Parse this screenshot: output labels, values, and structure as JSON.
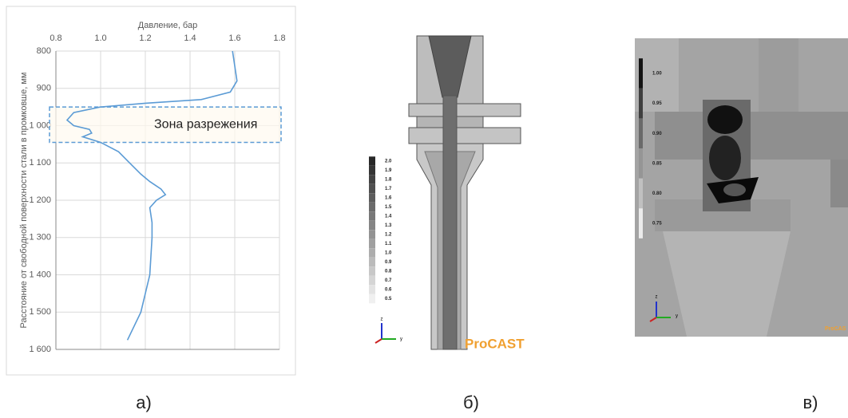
{
  "chart_data": {
    "type": "line",
    "x_label": "Давление, бар",
    "y_label": "Расстояние от свободной поверхности стали в промковше, мм",
    "annotation": "Зона разрежения",
    "band_ylim": [
      950,
      1045
    ],
    "xlim": [
      0.8,
      1.8
    ],
    "xticks": [
      0.8,
      {
        "value": 1,
        "label": "1.0"
      },
      1.2,
      1.4,
      1.6,
      1.8
    ],
    "ylim": [
      800,
      1600
    ],
    "y_reversed": true,
    "yticks": [
      800,
      900,
      {
        "value": 1000,
        "label": "1 000"
      },
      {
        "value": 1100,
        "label": "1 100"
      },
      {
        "value": 1200,
        "label": "1 200"
      },
      {
        "value": 1300,
        "label": "1 300"
      },
      {
        "value": 1400,
        "label": "1 400"
      },
      {
        "value": 1500,
        "label": "1 500"
      },
      {
        "value": 1600,
        "label": "1 600"
      }
    ],
    "grid": true,
    "color": "#5b9bd5",
    "x": [
      1.59,
      1.6,
      1.61,
      1.58,
      1.45,
      1.2,
      1.0,
      0.88,
      0.85,
      0.88,
      0.95,
      0.96,
      0.92,
      1.0,
      1.08,
      1.13,
      1.18,
      1.22,
      1.27,
      1.29,
      1.25,
      1.22,
      1.23,
      1.23,
      1.22,
      1.18,
      1.12
    ],
    "values": [
      800,
      840,
      880,
      910,
      930,
      940,
      950,
      965,
      985,
      1000,
      1010,
      1020,
      1030,
      1045,
      1070,
      1100,
      1130,
      1150,
      1170,
      1185,
      1200,
      1220,
      1260,
      1300,
      1400,
      1500,
      1575
    ]
  },
  "panels": [
    {
      "caption": "а)"
    },
    {
      "caption": "б)",
      "colorbar_labels": [
        "2.0",
        "1.9",
        "1.8",
        "1.7",
        "1.6",
        "1.5",
        "1.4",
        "1.3",
        "1.2",
        "1.1",
        "1.0",
        "0.9",
        "0.8",
        "0.7",
        "0.6",
        "0.5"
      ],
      "logo": "ProCAST",
      "axes_labels": [
        "z",
        "y"
      ]
    },
    {
      "caption": "в)",
      "colorbar_labels": [
        "1.00",
        "0.95",
        "0.90",
        "0.85",
        "0.80",
        "0.75"
      ],
      "logo": "ProCAS",
      "axes_labels": [
        "z",
        "y"
      ]
    }
  ]
}
